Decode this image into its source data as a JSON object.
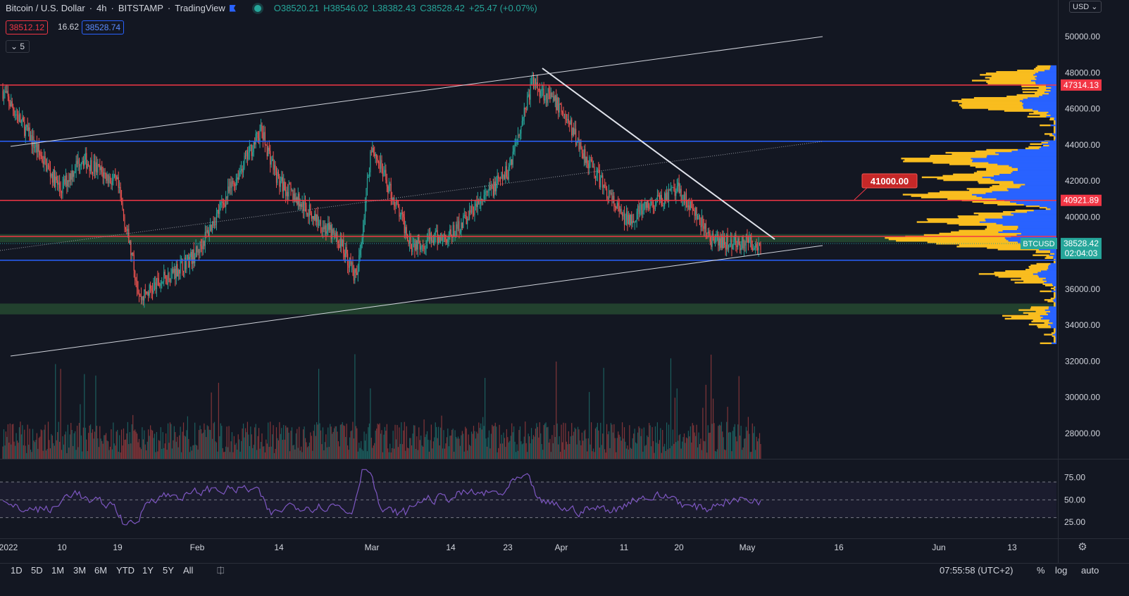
{
  "header": {
    "symbol": "Bitcoin / U.S. Dollar",
    "interval": "4h",
    "exchange": "BITSTAMP",
    "platform": "TradingView",
    "open": "O38520.21",
    "high": "H38546.02",
    "low": "L38382.43",
    "close": "C38528.42",
    "change": "+25.47 (+0.07%)"
  },
  "quote": {
    "bid": "38512.12",
    "spread": "16.62",
    "ask": "38528.74"
  },
  "indicator_toggle": "5",
  "currency": "USD",
  "colors": {
    "background": "#131722",
    "up": "#26a69a",
    "down": "#ef5350",
    "red_level": "#f23645",
    "blue_level": "#2962ff",
    "profile_yellow": "#f9bd1f",
    "profile_blue": "#2962ff",
    "rsi": "#7e57c2"
  },
  "chart_data": {
    "type": "line",
    "price_axis": [
      "50000.00",
      "48000.00",
      "46000.00",
      "44000.00",
      "42000.00",
      "40000.00",
      "38000.00",
      "36000.00",
      "34000.00",
      "32000.00",
      "30000.00",
      "28000.00"
    ],
    "ylim": [
      26500,
      51500
    ],
    "time_axis": [
      "2022",
      "10",
      "19",
      "Feb",
      "14",
      "Mar",
      "14",
      "23",
      "Apr",
      "11",
      "20",
      "May",
      "16",
      "Jun",
      "13"
    ],
    "approx_close_path": [
      {
        "t": "2022",
        "v": 47000
      },
      {
        "t": "10",
        "v": 41500
      },
      {
        "t": "13",
        "v": 43300
      },
      {
        "t": "19",
        "v": 41800
      },
      {
        "t": "22",
        "v": 35500
      },
      {
        "t": "Feb",
        "v": 38000
      },
      {
        "t": "10",
        "v": 44800
      },
      {
        "t": "14",
        "v": 42000
      },
      {
        "t": "21",
        "v": 38500
      },
      {
        "t": "24",
        "v": 36500
      },
      {
        "t": "Mar",
        "v": 44000
      },
      {
        "t": "7",
        "v": 38500
      },
      {
        "t": "14",
        "v": 39000
      },
      {
        "t": "23",
        "v": 42500
      },
      {
        "t": "28",
        "v": 47500
      },
      {
        "t": "Apr",
        "v": 46000
      },
      {
        "t": "6",
        "v": 43500
      },
      {
        "t": "11",
        "v": 39800
      },
      {
        "t": "20",
        "v": 41500
      },
      {
        "t": "25",
        "v": 38600
      },
      {
        "t": "May",
        "v": 38528
      }
    ],
    "horizontal_levels": [
      {
        "price": 47314.13,
        "color": "red",
        "label": "47314.13"
      },
      {
        "price": 44200,
        "color": "blue"
      },
      {
        "price": 40921.89,
        "color": "red",
        "label": "40921.89"
      },
      {
        "price": 38920,
        "color": "red"
      },
      {
        "price": 37600,
        "color": "blue"
      }
    ],
    "zones": [
      {
        "from": 38600,
        "to": 39050
      },
      {
        "from": 34600,
        "to": 35200
      }
    ],
    "annotation": "41000.00",
    "last_price": {
      "symbol": "BTCUSD",
      "price": "38528.42",
      "countdown": "02:04:03"
    },
    "rsi": {
      "axis": [
        "75.00",
        "50.00",
        "25.00"
      ],
      "upper": 70,
      "lower": 30,
      "last": 49
    }
  },
  "bottom": {
    "timeframes": [
      "1D",
      "5D",
      "1M",
      "3M",
      "6M",
      "YTD",
      "1Y",
      "5Y",
      "All"
    ],
    "clock": "07:55:58 (UTC+2)",
    "percent": "%",
    "log": "log",
    "auto": "auto"
  }
}
